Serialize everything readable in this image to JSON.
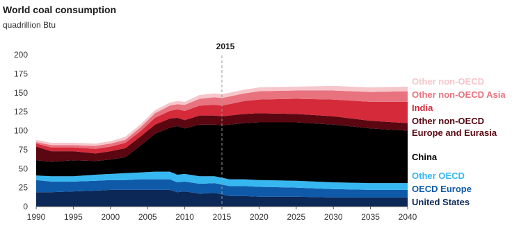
{
  "chart_data": {
    "type": "area",
    "stacked": true,
    "title": "World coal consumption",
    "subtitle": "quadrillion Btu",
    "xlabel": "",
    "ylabel": "",
    "xlim": [
      1990,
      2040
    ],
    "ylim": [
      0,
      200
    ],
    "yticks": [
      0,
      25,
      50,
      75,
      100,
      125,
      150,
      175,
      200
    ],
    "xticks": [
      1990,
      1995,
      2000,
      2005,
      2010,
      2015,
      2020,
      2025,
      2030,
      2035,
      2040
    ],
    "grid": false,
    "legend_position": "right",
    "x": [
      1990,
      1992,
      1995,
      1998,
      2000,
      2002,
      2004,
      2006,
      2008,
      2009,
      2010,
      2012,
      2014,
      2015,
      2016,
      2018,
      2020,
      2025,
      2030,
      2035,
      2040
    ],
    "series": [
      {
        "name": "United States",
        "color": "#0b2857",
        "values": [
          19,
          19,
          20,
          21,
          22,
          22,
          22,
          22,
          22,
          19,
          20,
          17,
          18,
          16,
          14,
          14,
          13,
          13,
          12,
          12,
          12
        ]
      },
      {
        "name": "OECD Europe",
        "color": "#0f5aa8",
        "values": [
          16,
          14,
          13,
          13,
          13,
          13,
          14,
          14,
          14,
          13,
          13,
          13,
          13,
          13,
          13,
          13,
          13,
          12,
          11,
          10,
          10
        ]
      },
      {
        "name": "Other OECD",
        "color": "#36b7f0",
        "values": [
          6,
          7,
          7,
          8,
          8,
          9,
          9,
          10,
          10,
          10,
          10,
          10,
          9,
          9,
          9,
          9,
          9,
          9,
          9,
          9,
          9
        ]
      },
      {
        "name": "China",
        "color": "#000000",
        "values": [
          20,
          19,
          21,
          18,
          19,
          21,
          35,
          50,
          58,
          64,
          60,
          68,
          68,
          69,
          72,
          74,
          76,
          77,
          76,
          72,
          69
        ]
      },
      {
        "name": "Other non-OECD Europe and Eurasia",
        "color": "#5a0711",
        "values": [
          18,
          14,
          12,
          10,
          11,
          12,
          12,
          12,
          12,
          11,
          11,
          12,
          12,
          12,
          12,
          12,
          12,
          11,
          11,
          10,
          10
        ]
      },
      {
        "name": "India",
        "color": "#d42a3a",
        "values": [
          4,
          5,
          5,
          6,
          6,
          7,
          7,
          9,
          10,
          11,
          12,
          13,
          14,
          14,
          15,
          17,
          18,
          20,
          22,
          25,
          28
        ]
      },
      {
        "name": "Other non-OECD Asia",
        "color": "#e8727e",
        "values": [
          2,
          3,
          3,
          4,
          4,
          4,
          5,
          6,
          7,
          7,
          8,
          9,
          10,
          10,
          10,
          10,
          11,
          11,
          12,
          13,
          14
        ]
      },
      {
        "name": "Other non-OECD",
        "color": "#f6c6cb",
        "values": [
          3,
          3,
          3,
          3,
          3,
          4,
          4,
          4,
          4,
          4,
          4,
          5,
          5,
          5,
          5,
          5,
          5,
          5,
          6,
          6,
          6
        ]
      }
    ],
    "annotations": [
      {
        "label": "2015",
        "x": 2015
      }
    ]
  }
}
